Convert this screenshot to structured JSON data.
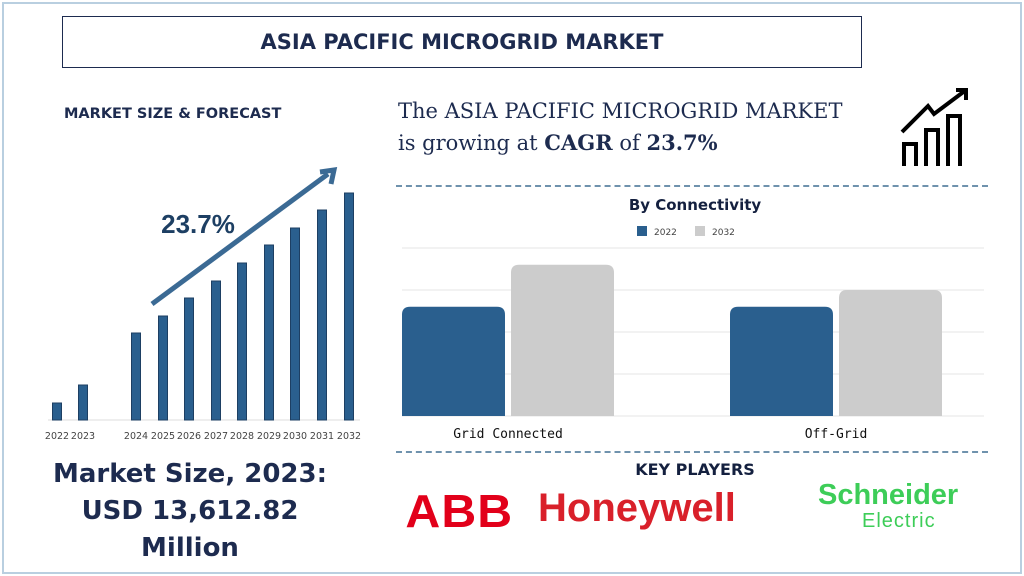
{
  "title": "ASIA PACIFIC MICROGRID MARKET",
  "left_label": "MARKET SIZE & FORECAST",
  "headline": {
    "part1": "The ASIA PACIFIC MICROGRID MARKET",
    "part2": "is growing at",
    "cagr_word": "CAGR",
    "of": "of",
    "cagr_value": "23.7%"
  },
  "market_size": {
    "line1": "Market Size, 2023:",
    "line2": "USD 13,612.82",
    "line3": "Million"
  },
  "key_players": {
    "label": "KEY PLAYERS",
    "logos": [
      "ABB",
      "Honeywell",
      "Schneider",
      "Electric"
    ]
  },
  "colors": {
    "navy": "#1d2b4f",
    "bar_blue": "#2a5f8e",
    "bar_grey": "#cccccc",
    "arrow": "#3b6a94"
  },
  "chart_data": [
    {
      "type": "bar",
      "title": "",
      "annotation": "23.7%",
      "categories": [
        "2022",
        "2023",
        "2024",
        "2025",
        "2026",
        "2027",
        "2028",
        "2029",
        "2030",
        "2031",
        "2032"
      ],
      "values": [
        17,
        35,
        87,
        104,
        122,
        139,
        157,
        175,
        192,
        210,
        227
      ],
      "grid": false
    },
    {
      "type": "bar",
      "title": "By Connectivity",
      "categories": [
        "Grid Connected",
        "Off-Grid"
      ],
      "series": [
        {
          "name": "2022",
          "values": [
            2.6,
            2.6
          ]
        },
        {
          "name": "2032",
          "values": [
            3.6,
            3.0
          ]
        }
      ],
      "ylim": [
        0,
        4
      ],
      "grid": true,
      "legend": "top"
    }
  ]
}
